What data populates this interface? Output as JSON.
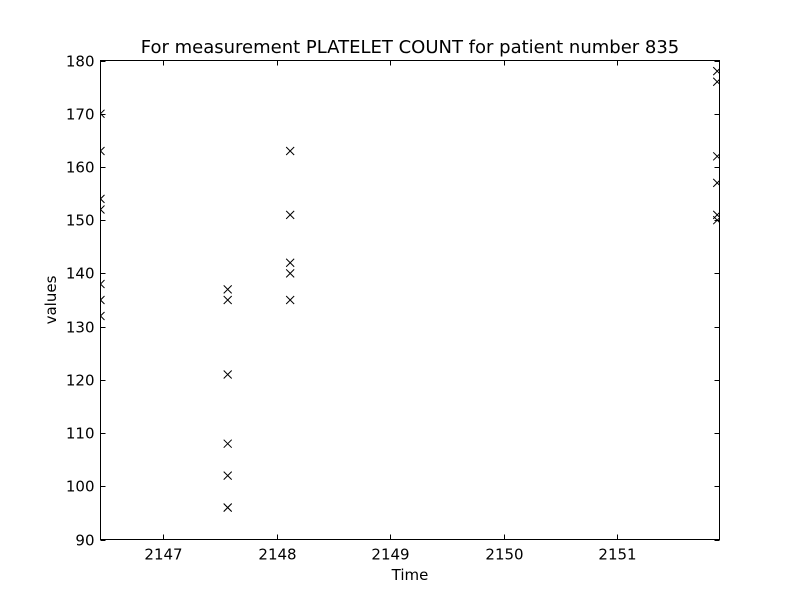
{
  "chart_data": {
    "type": "scatter",
    "title": "For measurement PLATELET COUNT for patient number 835",
    "xlabel": "Time",
    "ylabel": "values",
    "xlim": [
      2146.45,
      2151.9
    ],
    "ylim": [
      90,
      180
    ],
    "xticks": [
      2147,
      2148,
      2149,
      2150,
      2151
    ],
    "yticks": [
      90,
      100,
      110,
      120,
      130,
      140,
      150,
      160,
      170,
      180
    ],
    "grid": false,
    "marker": "x",
    "marker_color": "#000000",
    "series": [
      {
        "points": [
          [
            2146.45,
            170
          ],
          [
            2146.45,
            163
          ],
          [
            2146.45,
            154
          ],
          [
            2146.45,
            152
          ],
          [
            2146.45,
            138
          ],
          [
            2146.45,
            135
          ],
          [
            2146.45,
            132
          ],
          [
            2147.57,
            137
          ],
          [
            2147.57,
            135
          ],
          [
            2147.57,
            121
          ],
          [
            2147.57,
            108
          ],
          [
            2147.57,
            102
          ],
          [
            2147.57,
            96
          ],
          [
            2147.57,
            96
          ],
          [
            2148.12,
            163
          ],
          [
            2148.12,
            151
          ],
          [
            2148.12,
            142
          ],
          [
            2148.12,
            140
          ],
          [
            2148.12,
            135
          ],
          [
            2151.88,
            178
          ],
          [
            2151.88,
            176
          ],
          [
            2151.88,
            162
          ],
          [
            2151.88,
            157
          ],
          [
            2151.88,
            151
          ],
          [
            2151.88,
            150
          ]
        ]
      }
    ]
  }
}
